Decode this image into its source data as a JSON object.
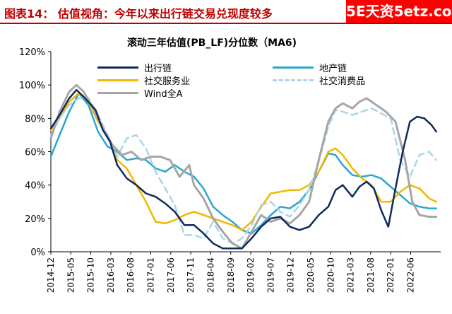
{
  "header": {
    "title": "图表14：  估值视角：今年以来出行链交易兑现度较多",
    "watermark": "5E天资5etz.com"
  },
  "chart_data": {
    "type": "line",
    "title": "滚动三年估值(PB_LF)分位数（MA6)",
    "xlabel": "",
    "ylabel": "",
    "ylim": [
      0,
      1.2
    ],
    "y_ticks": [
      0,
      0.2,
      0.4,
      0.6,
      0.8,
      1.0,
      1.2
    ],
    "y_tick_labels": [
      "0%",
      "20%",
      "40%",
      "60%",
      "80%",
      "100%",
      "120%"
    ],
    "x_range": [
      2014.917,
      2023.042
    ],
    "x_ticks": [
      2014.917,
      2015.333,
      2015.75,
      2016.167,
      2016.583,
      2017.0,
      2017.417,
      2017.833,
      2018.25,
      2018.667,
      2019.083,
      2019.5,
      2019.917,
      2020.333,
      2020.75,
      2021.167,
      2021.583,
      2022.0,
      2022.417
    ],
    "x_tick_labels": [
      "2014-12",
      "2015-05",
      "2015-10",
      "2016-03",
      "2016-08",
      "2017-01",
      "2017-06",
      "2017-11",
      "2018-04",
      "2018-09",
      "2019-02",
      "2019-07",
      "2019-12",
      "2020-05",
      "2020-10",
      "2021-03",
      "2021-08",
      "2022-01",
      "2022-06"
    ],
    "grid": false,
    "legend_position": "top",
    "series": [
      {
        "name": "出行链",
        "color": "#0f2a5c",
        "dash": false,
        "points": [
          [
            2014.917,
            0.74
          ],
          [
            2015.1,
            0.82
          ],
          [
            2015.3,
            0.92
          ],
          [
            2015.45,
            0.97
          ],
          [
            2015.6,
            0.93
          ],
          [
            2015.85,
            0.85
          ],
          [
            2016.0,
            0.73
          ],
          [
            2016.15,
            0.66
          ],
          [
            2016.3,
            0.52
          ],
          [
            2016.5,
            0.44
          ],
          [
            2016.7,
            0.4
          ],
          [
            2016.9,
            0.35
          ],
          [
            2017.1,
            0.33
          ],
          [
            2017.3,
            0.29
          ],
          [
            2017.5,
            0.24
          ],
          [
            2017.7,
            0.16
          ],
          [
            2017.9,
            0.16
          ],
          [
            2018.1,
            0.11
          ],
          [
            2018.3,
            0.05
          ],
          [
            2018.5,
            0.02
          ],
          [
            2018.7,
            0.02
          ],
          [
            2018.9,
            0.02
          ],
          [
            2019.1,
            0.08
          ],
          [
            2019.3,
            0.15
          ],
          [
            2019.5,
            0.2
          ],
          [
            2019.7,
            0.21
          ],
          [
            2019.9,
            0.15
          ],
          [
            2020.1,
            0.13
          ],
          [
            2020.3,
            0.15
          ],
          [
            2020.5,
            0.22
          ],
          [
            2020.7,
            0.27
          ],
          [
            2020.85,
            0.37
          ],
          [
            2021.0,
            0.4
          ],
          [
            2021.2,
            0.33
          ],
          [
            2021.35,
            0.39
          ],
          [
            2021.5,
            0.42
          ],
          [
            2021.65,
            0.38
          ],
          [
            2021.8,
            0.25
          ],
          [
            2021.95,
            0.15
          ],
          [
            2022.1,
            0.38
          ],
          [
            2022.25,
            0.6
          ],
          [
            2022.4,
            0.78
          ],
          [
            2022.55,
            0.81
          ],
          [
            2022.7,
            0.8
          ],
          [
            2022.85,
            0.76
          ],
          [
            2022.95,
            0.72
          ]
        ]
      },
      {
        "name": "地产链",
        "color": "#2aa7cf",
        "dash": false,
        "points": [
          [
            2014.917,
            0.57
          ],
          [
            2015.1,
            0.7
          ],
          [
            2015.3,
            0.84
          ],
          [
            2015.5,
            0.95
          ],
          [
            2015.7,
            0.88
          ],
          [
            2015.9,
            0.72
          ],
          [
            2016.1,
            0.63
          ],
          [
            2016.3,
            0.6
          ],
          [
            2016.5,
            0.55
          ],
          [
            2016.7,
            0.56
          ],
          [
            2016.9,
            0.55
          ],
          [
            2017.1,
            0.5
          ],
          [
            2017.3,
            0.48
          ],
          [
            2017.5,
            0.52
          ],
          [
            2017.7,
            0.48
          ],
          [
            2017.9,
            0.45
          ],
          [
            2018.1,
            0.38
          ],
          [
            2018.3,
            0.27
          ],
          [
            2018.5,
            0.22
          ],
          [
            2018.7,
            0.18
          ],
          [
            2018.9,
            0.13
          ],
          [
            2019.1,
            0.11
          ],
          [
            2019.3,
            0.16
          ],
          [
            2019.5,
            0.22
          ],
          [
            2019.7,
            0.27
          ],
          [
            2019.9,
            0.26
          ],
          [
            2020.1,
            0.3
          ],
          [
            2020.3,
            0.37
          ],
          [
            2020.5,
            0.48
          ],
          [
            2020.7,
            0.59
          ],
          [
            2020.85,
            0.58
          ],
          [
            2021.0,
            0.52
          ],
          [
            2021.2,
            0.46
          ],
          [
            2021.4,
            0.45
          ],
          [
            2021.6,
            0.46
          ],
          [
            2021.8,
            0.44
          ],
          [
            2022.0,
            0.39
          ],
          [
            2022.2,
            0.34
          ],
          [
            2022.4,
            0.29
          ],
          [
            2022.6,
            0.27
          ],
          [
            2022.8,
            0.26
          ],
          [
            2022.95,
            0.26
          ]
        ]
      },
      {
        "name": "社交服务业",
        "color": "#f2b700",
        "dash": false,
        "points": [
          [
            2014.917,
            0.73
          ],
          [
            2015.1,
            0.8
          ],
          [
            2015.3,
            0.9
          ],
          [
            2015.5,
            0.95
          ],
          [
            2015.7,
            0.9
          ],
          [
            2015.9,
            0.78
          ],
          [
            2016.1,
            0.7
          ],
          [
            2016.3,
            0.55
          ],
          [
            2016.5,
            0.5
          ],
          [
            2016.7,
            0.4
          ],
          [
            2016.9,
            0.3
          ],
          [
            2017.1,
            0.18
          ],
          [
            2017.3,
            0.17
          ],
          [
            2017.5,
            0.19
          ],
          [
            2017.7,
            0.22
          ],
          [
            2017.9,
            0.24
          ],
          [
            2018.1,
            0.22
          ],
          [
            2018.3,
            0.2
          ],
          [
            2018.5,
            0.18
          ],
          [
            2018.7,
            0.16
          ],
          [
            2018.9,
            0.13
          ],
          [
            2019.1,
            0.18
          ],
          [
            2019.3,
            0.27
          ],
          [
            2019.5,
            0.35
          ],
          [
            2019.7,
            0.36
          ],
          [
            2019.9,
            0.37
          ],
          [
            2020.1,
            0.37
          ],
          [
            2020.3,
            0.4
          ],
          [
            2020.5,
            0.48
          ],
          [
            2020.7,
            0.6
          ],
          [
            2020.85,
            0.62
          ],
          [
            2021.0,
            0.58
          ],
          [
            2021.2,
            0.5
          ],
          [
            2021.4,
            0.44
          ],
          [
            2021.6,
            0.4
          ],
          [
            2021.8,
            0.3
          ],
          [
            2022.0,
            0.3
          ],
          [
            2022.2,
            0.36
          ],
          [
            2022.4,
            0.4
          ],
          [
            2022.6,
            0.38
          ],
          [
            2022.8,
            0.32
          ],
          [
            2022.95,
            0.3
          ]
        ]
      },
      {
        "name": "社交消费品",
        "color": "#a9d6ea",
        "dash": true,
        "points": [
          [
            2014.917,
            0.7
          ],
          [
            2015.1,
            0.8
          ],
          [
            2015.3,
            0.88
          ],
          [
            2015.5,
            0.92
          ],
          [
            2015.7,
            0.92
          ],
          [
            2015.9,
            0.82
          ],
          [
            2016.1,
            0.7
          ],
          [
            2016.3,
            0.57
          ],
          [
            2016.5,
            0.68
          ],
          [
            2016.7,
            0.7
          ],
          [
            2016.9,
            0.62
          ],
          [
            2017.1,
            0.48
          ],
          [
            2017.3,
            0.38
          ],
          [
            2017.5,
            0.28
          ],
          [
            2017.7,
            0.1
          ],
          [
            2017.9,
            0.1
          ],
          [
            2018.1,
            0.08
          ],
          [
            2018.3,
            0.18
          ],
          [
            2018.5,
            0.08
          ],
          [
            2018.7,
            0.05
          ],
          [
            2018.9,
            0.08
          ],
          [
            2019.1,
            0.16
          ],
          [
            2019.3,
            0.28
          ],
          [
            2019.5,
            0.3
          ],
          [
            2019.7,
            0.24
          ],
          [
            2019.9,
            0.21
          ],
          [
            2020.1,
            0.28
          ],
          [
            2020.3,
            0.37
          ],
          [
            2020.5,
            0.54
          ],
          [
            2020.7,
            0.75
          ],
          [
            2020.85,
            0.85
          ],
          [
            2021.0,
            0.84
          ],
          [
            2021.2,
            0.82
          ],
          [
            2021.4,
            0.84
          ],
          [
            2021.6,
            0.86
          ],
          [
            2021.8,
            0.83
          ],
          [
            2022.0,
            0.8
          ],
          [
            2022.2,
            0.55
          ],
          [
            2022.4,
            0.45
          ],
          [
            2022.6,
            0.58
          ],
          [
            2022.8,
            0.6
          ],
          [
            2022.95,
            0.55
          ]
        ]
      },
      {
        "name": "Wind全A",
        "color": "#a6a6a6",
        "dash": false,
        "points": [
          [
            2014.917,
            0.68
          ],
          [
            2015.1,
            0.84
          ],
          [
            2015.3,
            0.96
          ],
          [
            2015.45,
            1.0
          ],
          [
            2015.6,
            0.96
          ],
          [
            2015.8,
            0.86
          ],
          [
            2016.0,
            0.74
          ],
          [
            2016.2,
            0.64
          ],
          [
            2016.4,
            0.58
          ],
          [
            2016.6,
            0.6
          ],
          [
            2016.8,
            0.55
          ],
          [
            2017.0,
            0.57
          ],
          [
            2017.2,
            0.57
          ],
          [
            2017.4,
            0.55
          ],
          [
            2017.6,
            0.45
          ],
          [
            2017.8,
            0.52
          ],
          [
            2017.9,
            0.4
          ],
          [
            2018.1,
            0.32
          ],
          [
            2018.3,
            0.2
          ],
          [
            2018.5,
            0.12
          ],
          [
            2018.7,
            0.05
          ],
          [
            2018.9,
            0.02
          ],
          [
            2019.1,
            0.12
          ],
          [
            2019.3,
            0.22
          ],
          [
            2019.5,
            0.18
          ],
          [
            2019.7,
            0.2
          ],
          [
            2019.9,
            0.17
          ],
          [
            2020.1,
            0.22
          ],
          [
            2020.3,
            0.3
          ],
          [
            2020.5,
            0.55
          ],
          [
            2020.7,
            0.78
          ],
          [
            2020.85,
            0.86
          ],
          [
            2021.0,
            0.89
          ],
          [
            2021.2,
            0.86
          ],
          [
            2021.35,
            0.9
          ],
          [
            2021.5,
            0.92
          ],
          [
            2021.7,
            0.88
          ],
          [
            2021.9,
            0.84
          ],
          [
            2022.1,
            0.78
          ],
          [
            2022.3,
            0.55
          ],
          [
            2022.45,
            0.3
          ],
          [
            2022.6,
            0.22
          ],
          [
            2022.8,
            0.21
          ],
          [
            2022.95,
            0.21
          ]
        ]
      }
    ]
  }
}
